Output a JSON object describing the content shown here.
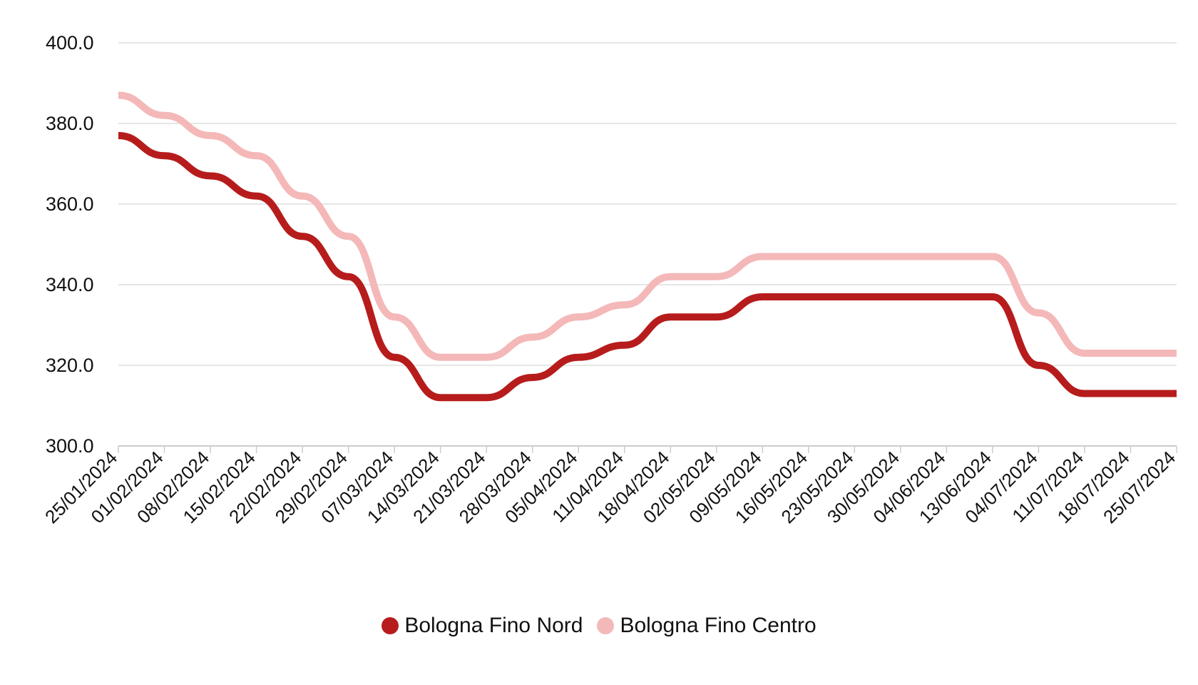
{
  "chart_data": {
    "type": "line",
    "title": "",
    "xlabel": "",
    "ylabel": "",
    "ylim": [
      300,
      400
    ],
    "yticks": [
      "300.0",
      "320.0",
      "340.0",
      "360.0",
      "380.0",
      "400.0"
    ],
    "grid": true,
    "legend_position": "bottom-center",
    "categories": [
      "25/01/2024",
      "01/02/2024",
      "08/02/2024",
      "15/02/2024",
      "22/02/2024",
      "29/02/2024",
      "07/03/2024",
      "14/03/2024",
      "21/03/2024",
      "28/03/2024",
      "05/04/2024",
      "11/04/2024",
      "18/04/2024",
      "02/05/2024",
      "09/05/2024",
      "16/05/2024",
      "23/05/2024",
      "30/05/2024",
      "04/06/2024",
      "13/06/2024",
      "04/07/2024",
      "11/07/2024",
      "18/07/2024",
      "25/07/2024"
    ],
    "series": [
      {
        "name": "Bologna Fino Nord",
        "color": "#b71c1c",
        "values": [
          377,
          372,
          367,
          362,
          352,
          342,
          322,
          312,
          312,
          317,
          322,
          325,
          332,
          332,
          337,
          337,
          337,
          337,
          337,
          337,
          320,
          313,
          313,
          313
        ]
      },
      {
        "name": "Bologna Fino Centro",
        "color": "#f4b8b8",
        "values": [
          387,
          382,
          377,
          372,
          362,
          352,
          332,
          322,
          322,
          327,
          332,
          335,
          342,
          342,
          347,
          347,
          347,
          347,
          347,
          347,
          333,
          323,
          323,
          323
        ]
      }
    ]
  }
}
